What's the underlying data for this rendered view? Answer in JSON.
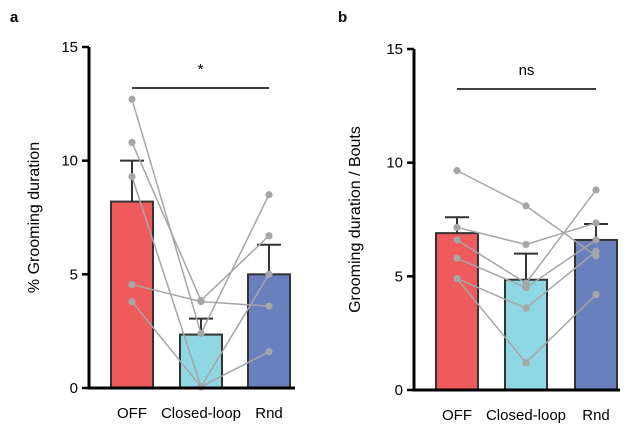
{
  "chart_data": [
    {
      "type": "bar",
      "panel_label": "a",
      "categories": [
        "OFF",
        "Closed-loop",
        "Rnd"
      ],
      "values": [
        8.2,
        2.35,
        5.0
      ],
      "error_upper": [
        10.0,
        3.05,
        6.3
      ],
      "colors": [
        "#ef5a5d",
        "#8ed7e3",
        "#6a7fbd"
      ],
      "individual_points": [
        [
          12.7,
          2.4,
          8.5
        ],
        [
          10.8,
          3.85,
          6.7
        ],
        [
          9.3,
          0.05,
          5.0
        ],
        [
          4.55,
          3.8,
          3.6
        ],
        [
          3.8,
          0.05,
          1.6
        ]
      ],
      "ylabel": "% Grooming duration",
      "ylim": [
        0,
        15
      ],
      "yticks": [
        "0",
        "5",
        "10",
        "15"
      ],
      "significance": {
        "label": "*",
        "from": "OFF",
        "to": "Rnd"
      },
      "grid": false
    },
    {
      "type": "bar",
      "panel_label": "b",
      "categories": [
        "OFF",
        "Closed-loop",
        "Rnd"
      ],
      "values": [
        6.9,
        4.85,
        6.6
      ],
      "error_upper": [
        7.6,
        6.0,
        7.3
      ],
      "colors": [
        "#ef5a5d",
        "#8ed7e3",
        "#6a7fbd"
      ],
      "individual_points": [
        [
          9.65,
          8.1,
          5.9
        ],
        [
          7.15,
          6.4,
          7.35
        ],
        [
          6.6,
          4.7,
          8.8
        ],
        [
          5.8,
          4.5,
          6.6
        ],
        [
          4.9,
          3.6,
          6.1
        ],
        [
          4.9,
          1.2,
          4.2
        ]
      ],
      "ylabel": "Grooming duration / Bouts",
      "ylim": [
        0,
        15
      ],
      "yticks": [
        "0",
        "5",
        "10",
        "15"
      ],
      "significance": {
        "label": "ns",
        "from": "OFF",
        "to": "Rnd"
      },
      "grid": false
    }
  ],
  "colors": {
    "bar_outline": "#333333",
    "points": "#a6a6a6",
    "axis": "#000000"
  }
}
